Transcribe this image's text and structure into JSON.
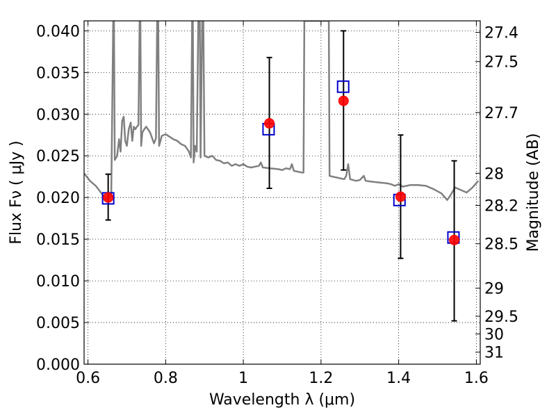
{
  "chart_data": {
    "type": "scatter",
    "title": "",
    "xlabel": "Wavelength  λ (μm)",
    "ylabel": "Flux  Fν  ( μJy )",
    "y2label": "Magnitude (AB)",
    "xlim": [
      0.59,
      1.61
    ],
    "ylim": [
      0.0,
      0.0412
    ],
    "grid": true,
    "x_ticks": [
      {
        "v": 0.6,
        "label": "0.6"
      },
      {
        "v": 0.8,
        "label": "0.8"
      },
      {
        "v": 1.0,
        "label": "1"
      },
      {
        "v": 1.2,
        "label": "1.2"
      },
      {
        "v": 1.4,
        "label": "1.4"
      },
      {
        "v": 1.6,
        "label": "1.6"
      }
    ],
    "y_ticks": [
      {
        "v": 0.0,
        "label": "0.000"
      },
      {
        "v": 0.005,
        "label": "0.005"
      },
      {
        "v": 0.01,
        "label": "0.010"
      },
      {
        "v": 0.015,
        "label": "0.015"
      },
      {
        "v": 0.02,
        "label": "0.020"
      },
      {
        "v": 0.025,
        "label": "0.025"
      },
      {
        "v": 0.03,
        "label": "0.030"
      },
      {
        "v": 0.035,
        "label": "0.035"
      },
      {
        "v": 0.04,
        "label": "0.040"
      }
    ],
    "y2_ticks": [
      {
        "mag": 27.4,
        "label": "27.4"
      },
      {
        "mag": 27.5,
        "label": "27.5"
      },
      {
        "mag": 27.7,
        "label": "27.7"
      },
      {
        "mag": 28.0,
        "label": "28"
      },
      {
        "mag": 28.2,
        "label": "28.2"
      },
      {
        "mag": 28.5,
        "label": "28.5"
      },
      {
        "mag": 29.0,
        "label": "29"
      },
      {
        "mag": 29.5,
        "label": "29.5"
      },
      {
        "mag": 30.0,
        "label": "30"
      },
      {
        "mag": 31.0,
        "label": "31"
      }
    ],
    "series": [
      {
        "kind": "line",
        "color": "#808080",
        "points": [
          [
            0.59,
            0.0229
          ],
          [
            0.605,
            0.022
          ],
          [
            0.62,
            0.0214
          ],
          [
            0.635,
            0.0205
          ],
          [
            0.645,
            0.0198
          ],
          [
            0.655,
            0.02
          ],
          [
            0.66,
            0.0205
          ],
          [
            0.665,
            0.0412
          ],
          [
            0.667,
            0.0412
          ],
          [
            0.669,
            0.0245
          ],
          [
            0.675,
            0.025
          ],
          [
            0.68,
            0.027
          ],
          [
            0.684,
            0.0255
          ],
          [
            0.688,
            0.0292
          ],
          [
            0.692,
            0.0297
          ],
          [
            0.696,
            0.0268
          ],
          [
            0.7,
            0.0262
          ],
          [
            0.705,
            0.0282
          ],
          [
            0.71,
            0.029
          ],
          [
            0.714,
            0.0268
          ],
          [
            0.718,
            0.0285
          ],
          [
            0.722,
            0.0282
          ],
          [
            0.726,
            0.0285
          ],
          [
            0.73,
            0.0287
          ],
          [
            0.733,
            0.0412
          ],
          [
            0.735,
            0.0412
          ],
          [
            0.737,
            0.0262
          ],
          [
            0.74,
            0.0278
          ],
          [
            0.745,
            0.0282
          ],
          [
            0.75,
            0.0285
          ],
          [
            0.76,
            0.0278
          ],
          [
            0.77,
            0.0265
          ],
          [
            0.775,
            0.0271
          ],
          [
            0.778,
            0.0412
          ],
          [
            0.781,
            0.0412
          ],
          [
            0.783,
            0.0262
          ],
          [
            0.79,
            0.0274
          ],
          [
            0.8,
            0.0276
          ],
          [
            0.81,
            0.0273
          ],
          [
            0.82,
            0.027
          ],
          [
            0.83,
            0.0268
          ],
          [
            0.84,
            0.0264
          ],
          [
            0.85,
            0.0262
          ],
          [
            0.86,
            0.0255
          ],
          [
            0.865,
            0.0248
          ],
          [
            0.868,
            0.0412
          ],
          [
            0.87,
            0.0412
          ],
          [
            0.872,
            0.0242
          ],
          [
            0.876,
            0.0262
          ],
          [
            0.88,
            0.0255
          ],
          [
            0.884,
            0.0412
          ],
          [
            0.888,
            0.0412
          ],
          [
            0.89,
            0.0248
          ],
          [
            0.894,
            0.0412
          ],
          [
            0.897,
            0.0412
          ],
          [
            0.9,
            0.025
          ],
          [
            0.91,
            0.0248
          ],
          [
            0.92,
            0.025
          ],
          [
            0.93,
            0.0245
          ],
          [
            0.94,
            0.0244
          ],
          [
            0.95,
            0.0241
          ],
          [
            0.96,
            0.0242
          ],
          [
            0.97,
            0.0238
          ],
          [
            0.98,
            0.024
          ],
          [
            0.99,
            0.0238
          ],
          [
            1.0,
            0.024
          ],
          [
            1.01,
            0.0237
          ],
          [
            1.02,
            0.0236
          ],
          [
            1.03,
            0.0237
          ],
          [
            1.04,
            0.0238
          ],
          [
            1.045,
            0.0242
          ],
          [
            1.05,
            0.0236
          ],
          [
            1.07,
            0.0235
          ],
          [
            1.09,
            0.0234
          ],
          [
            1.1,
            0.0233
          ],
          [
            1.11,
            0.0235
          ],
          [
            1.12,
            0.0234
          ],
          [
            1.125,
            0.024
          ],
          [
            1.13,
            0.0232
          ],
          [
            1.14,
            0.0231
          ],
          [
            1.15,
            0.023
          ],
          [
            1.155,
            0.023
          ],
          [
            1.157,
            0.0412
          ],
          [
            1.22,
            0.0412
          ],
          [
            1.222,
            0.0226
          ],
          [
            1.23,
            0.0225
          ],
          [
            1.24,
            0.0224
          ],
          [
            1.25,
            0.0223
          ],
          [
            1.26,
            0.0222
          ],
          [
            1.265,
            0.0226
          ],
          [
            1.27,
            0.024
          ],
          [
            1.275,
            0.0222
          ],
          [
            1.29,
            0.022
          ],
          [
            1.3,
            0.0221
          ],
          [
            1.31,
            0.0226
          ],
          [
            1.315,
            0.022
          ],
          [
            1.33,
            0.0219
          ],
          [
            1.35,
            0.0218
          ],
          [
            1.37,
            0.0217
          ],
          [
            1.38,
            0.0216
          ],
          [
            1.39,
            0.0214
          ],
          [
            1.4,
            0.0216
          ],
          [
            1.41,
            0.0213
          ],
          [
            1.43,
            0.0215
          ],
          [
            1.45,
            0.0215
          ],
          [
            1.47,
            0.0214
          ],
          [
            1.49,
            0.021
          ],
          [
            1.51,
            0.0205
          ],
          [
            1.525,
            0.0197
          ],
          [
            1.535,
            0.0204
          ],
          [
            1.545,
            0.0212
          ],
          [
            1.56,
            0.0209
          ],
          [
            1.575,
            0.0206
          ],
          [
            1.59,
            0.0212
          ],
          [
            1.605,
            0.022
          ]
        ]
      },
      {
        "kind": "errorbar",
        "color": "#000000",
        "points": [
          {
            "x": 0.652,
            "y": 0.02,
            "lo": 0.0173,
            "hi": 0.0228
          },
          {
            "x": 1.067,
            "y": 0.0289,
            "lo": 0.0211,
            "hi": 0.0368
          },
          {
            "x": 1.258,
            "y": 0.0316,
            "lo": 0.0233,
            "hi": 0.04
          },
          {
            "x": 1.405,
            "y": 0.0201,
            "lo": 0.0127,
            "hi": 0.0275
          },
          {
            "x": 1.543,
            "y": 0.0149,
            "lo": 0.0052,
            "hi": 0.0244
          }
        ]
      },
      {
        "kind": "markers",
        "marker": "square",
        "color": "#0000cc",
        "points": [
          [
            0.652,
            0.0199
          ],
          [
            1.065,
            0.0282
          ],
          [
            1.257,
            0.0333
          ],
          [
            1.402,
            0.0197
          ],
          [
            1.541,
            0.0152
          ]
        ]
      },
      {
        "kind": "markers",
        "marker": "circle",
        "color": "#ff0000",
        "points": [
          [
            0.652,
            0.02
          ],
          [
            1.067,
            0.0289
          ],
          [
            1.258,
            0.0316
          ],
          [
            1.405,
            0.0201
          ],
          [
            1.543,
            0.0149
          ]
        ]
      }
    ]
  }
}
